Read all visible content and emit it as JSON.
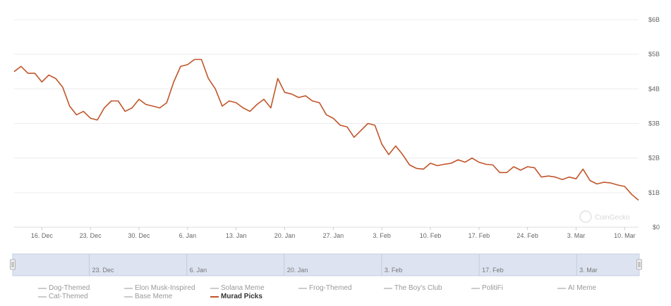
{
  "watermark": "CoinGecko",
  "chart_data": {
    "type": "line",
    "y_axis": {
      "ticks": [
        "$0",
        "$1B",
        "$2B",
        "$3B",
        "$4B",
        "$5B",
        "$6B"
      ],
      "ylim": [
        0,
        6
      ],
      "position": "right",
      "unit": "B USD"
    },
    "x_axis": {
      "ticks": [
        "16. Dec",
        "23. Dec",
        "30. Dec",
        "6. Jan",
        "13. Jan",
        "20. Jan",
        "27. Jan",
        "3. Feb",
        "10. Feb",
        "17. Feb",
        "24. Feb",
        "3. Mar",
        "10. Mar"
      ],
      "xlim": [
        "2024-12-12",
        "2025-03-10"
      ]
    },
    "grid": true,
    "series": [
      {
        "name": "Murad Picks",
        "color": "#c0552a",
        "points": [
          [
            "2024-12-12",
            4.5
          ],
          [
            "2024-12-13",
            4.65
          ],
          [
            "2024-12-14",
            4.45
          ],
          [
            "2024-12-15",
            4.45
          ],
          [
            "2024-12-16",
            4.2
          ],
          [
            "2024-12-17",
            4.4
          ],
          [
            "2024-12-18",
            4.3
          ],
          [
            "2024-12-19",
            4.05
          ],
          [
            "2024-12-20",
            3.5
          ],
          [
            "2024-12-21",
            3.25
          ],
          [
            "2024-12-22",
            3.35
          ],
          [
            "2024-12-23",
            3.15
          ],
          [
            "2024-12-24",
            3.1
          ],
          [
            "2024-12-25",
            3.45
          ],
          [
            "2024-12-26",
            3.65
          ],
          [
            "2024-12-27",
            3.65
          ],
          [
            "2024-12-28",
            3.35
          ],
          [
            "2024-12-29",
            3.45
          ],
          [
            "2024-12-30",
            3.7
          ],
          [
            "2024-12-31",
            3.55
          ],
          [
            "2025-01-01",
            3.5
          ],
          [
            "2025-01-02",
            3.45
          ],
          [
            "2025-01-03",
            3.6
          ],
          [
            "2025-01-04",
            4.2
          ],
          [
            "2025-01-05",
            4.65
          ],
          [
            "2025-01-06",
            4.7
          ],
          [
            "2025-01-07",
            4.85
          ],
          [
            "2025-01-08",
            4.85
          ],
          [
            "2025-01-09",
            4.3
          ],
          [
            "2025-01-10",
            4.0
          ],
          [
            "2025-01-11",
            3.5
          ],
          [
            "2025-01-12",
            3.65
          ],
          [
            "2025-01-13",
            3.6
          ],
          [
            "2025-01-14",
            3.45
          ],
          [
            "2025-01-15",
            3.35
          ],
          [
            "2025-01-16",
            3.55
          ],
          [
            "2025-01-17",
            3.7
          ],
          [
            "2025-01-18",
            3.45
          ],
          [
            "2025-01-19",
            4.3
          ],
          [
            "2025-01-20",
            3.9
          ],
          [
            "2025-01-21",
            3.85
          ],
          [
            "2025-01-22",
            3.75
          ],
          [
            "2025-01-23",
            3.8
          ],
          [
            "2025-01-24",
            3.65
          ],
          [
            "2025-01-25",
            3.6
          ],
          [
            "2025-01-26",
            3.25
          ],
          [
            "2025-01-27",
            3.15
          ],
          [
            "2025-01-28",
            2.95
          ],
          [
            "2025-01-29",
            2.9
          ],
          [
            "2025-01-30",
            2.6
          ],
          [
            "2025-01-31",
            2.8
          ],
          [
            "2025-02-01",
            3.0
          ],
          [
            "2025-02-02",
            2.95
          ],
          [
            "2025-02-03",
            2.4
          ],
          [
            "2025-02-04",
            2.1
          ],
          [
            "2025-02-05",
            2.35
          ],
          [
            "2025-02-06",
            2.1
          ],
          [
            "2025-02-07",
            1.8
          ],
          [
            "2025-02-08",
            1.7
          ],
          [
            "2025-02-09",
            1.68
          ],
          [
            "2025-02-10",
            1.85
          ],
          [
            "2025-02-11",
            1.78
          ],
          [
            "2025-02-12",
            1.82
          ],
          [
            "2025-02-13",
            1.85
          ],
          [
            "2025-02-14",
            1.95
          ],
          [
            "2025-02-15",
            1.88
          ],
          [
            "2025-02-16",
            2.0
          ],
          [
            "2025-02-17",
            1.88
          ],
          [
            "2025-02-18",
            1.82
          ],
          [
            "2025-02-19",
            1.8
          ],
          [
            "2025-02-20",
            1.58
          ],
          [
            "2025-02-21",
            1.58
          ],
          [
            "2025-02-22",
            1.75
          ],
          [
            "2025-02-23",
            1.65
          ],
          [
            "2025-02-24",
            1.75
          ],
          [
            "2025-02-25",
            1.72
          ],
          [
            "2025-02-26",
            1.45
          ],
          [
            "2025-02-27",
            1.48
          ],
          [
            "2025-02-28",
            1.45
          ],
          [
            "2025-03-01",
            1.38
          ],
          [
            "2025-03-02",
            1.45
          ],
          [
            "2025-03-03",
            1.4
          ],
          [
            "2025-03-04",
            1.68
          ],
          [
            "2025-03-05",
            1.35
          ],
          [
            "2025-03-06",
            1.25
          ],
          [
            "2025-03-07",
            1.3
          ],
          [
            "2025-03-08",
            1.28
          ],
          [
            "2025-03-09",
            1.22
          ],
          [
            "2025-03-10",
            1.18
          ],
          [
            "2025-03-11",
            0.95
          ],
          [
            "2025-03-12",
            0.78
          ]
        ]
      }
    ],
    "legend": {
      "placement": "bottom",
      "items": [
        {
          "label": "Dog-Themed",
          "active": false
        },
        {
          "label": "Elon Musk-Inspired",
          "active": false
        },
        {
          "label": "Solana Meme",
          "active": false
        },
        {
          "label": "Frog-Themed",
          "active": false
        },
        {
          "label": "The Boy's Club",
          "active": false
        },
        {
          "label": "PolitiFi",
          "active": false
        },
        {
          "label": "AI Meme",
          "active": false
        },
        {
          "label": "Cat-Themed",
          "active": false
        },
        {
          "label": "Base Meme",
          "active": false
        },
        {
          "label": "Murad Picks",
          "active": true
        }
      ]
    },
    "navigator": {
      "ticks": [
        "23. Dec",
        "6. Jan",
        "20. Jan",
        "3. Feb",
        "17. Feb",
        "3. Mar"
      ],
      "range": [
        "2024-12-12",
        "2025-03-12"
      ]
    }
  }
}
